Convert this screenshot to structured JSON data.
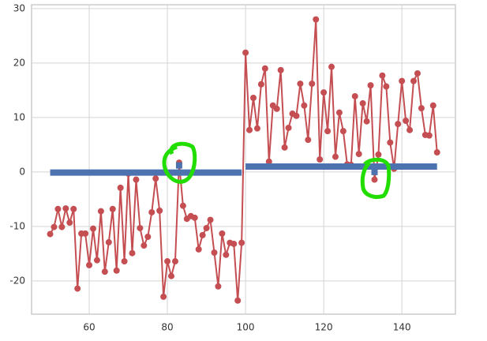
{
  "chart_data": {
    "type": "line",
    "xlim": [
      45.25,
      153.7
    ],
    "ylim": [
      -26.1,
      30.7
    ],
    "xticks": [
      60,
      80,
      100,
      120,
      140
    ],
    "yticks": [
      -20,
      -10,
      0,
      10,
      20,
      30
    ],
    "grid": true,
    "series": [
      {
        "color": "#c44e52",
        "linewidth": 2,
        "marker": "circle",
        "x": [
          50,
          51,
          52,
          53,
          54,
          55,
          56,
          57,
          58,
          59,
          60,
          61,
          62,
          63,
          64,
          65,
          66,
          67,
          68,
          69,
          70,
          71,
          72,
          73,
          74,
          75,
          76,
          77,
          78,
          79,
          80,
          81,
          82,
          83,
          84,
          85,
          86,
          87,
          88,
          89,
          90,
          91,
          92,
          93,
          94,
          95,
          96,
          97,
          98,
          99,
          100,
          101,
          102,
          103,
          104,
          105,
          106,
          107,
          108,
          109,
          110,
          111,
          112,
          113,
          114,
          115,
          116,
          117,
          118,
          119,
          120,
          121,
          122,
          123,
          124,
          125,
          126,
          127,
          128,
          129,
          130,
          131,
          132,
          133,
          134,
          135,
          136,
          137,
          138,
          139,
          140,
          141,
          142,
          143,
          144,
          145,
          146,
          147,
          148,
          149
        ],
        "values": [
          -11.4,
          -10.1,
          -6.8,
          -10.1,
          -6.7,
          -9.3,
          -6.8,
          -21.4,
          -11.3,
          -11.3,
          -17.1,
          -10.4,
          -16.2,
          -7.2,
          -18.3,
          -12.9,
          -6.8,
          -18.1,
          -2.9,
          -16.4,
          -0.3,
          -14.9,
          -1.4,
          -10.3,
          -13.5,
          -11.9,
          -7.4,
          -1.2,
          -7.1,
          -22.9,
          -16.4,
          -19.1,
          -16.4,
          1.7,
          -6.2,
          -8.6,
          -8.1,
          -8.4,
          -14.2,
          -11.6,
          -10.3,
          -8.8,
          -14.8,
          -21.0,
          -11.3,
          -15.2,
          -13.0,
          -13.2,
          -23.6,
          -13.0,
          21.9,
          7.7,
          13.6,
          8.0,
          16.1,
          19.0,
          1.9,
          12.2,
          11.6,
          18.7,
          4.5,
          8.1,
          10.7,
          10.3,
          16.2,
          12.2,
          5.9,
          16.2,
          28.0,
          2.3,
          14.6,
          7.5,
          19.3,
          2.8,
          10.9,
          7.5,
          1.4,
          1.3,
          13.9,
          3.3,
          12.6,
          9.3,
          15.9,
          -1.4,
          3.2,
          17.7,
          15.7,
          5.4,
          0.6,
          8.8,
          16.7,
          9.4,
          7.7,
          16.7,
          18.1,
          11.7,
          6.8,
          6.7,
          12.2,
          3.6
        ]
      },
      {
        "color": "#4c72b0",
        "linewidth": 8,
        "x": [
          50,
          99
        ],
        "values": [
          -0.1,
          -0.1
        ]
      },
      {
        "color": "#4c72b0",
        "linewidth": 8,
        "x": [
          100,
          149
        ],
        "values": [
          1.0,
          1.0
        ]
      },
      {
        "color": "#4c72b0",
        "linewidth": 0,
        "marker": "square",
        "x": [
          83,
          133
        ],
        "values": [
          1.2,
          0.0
        ]
      }
    ]
  }
}
